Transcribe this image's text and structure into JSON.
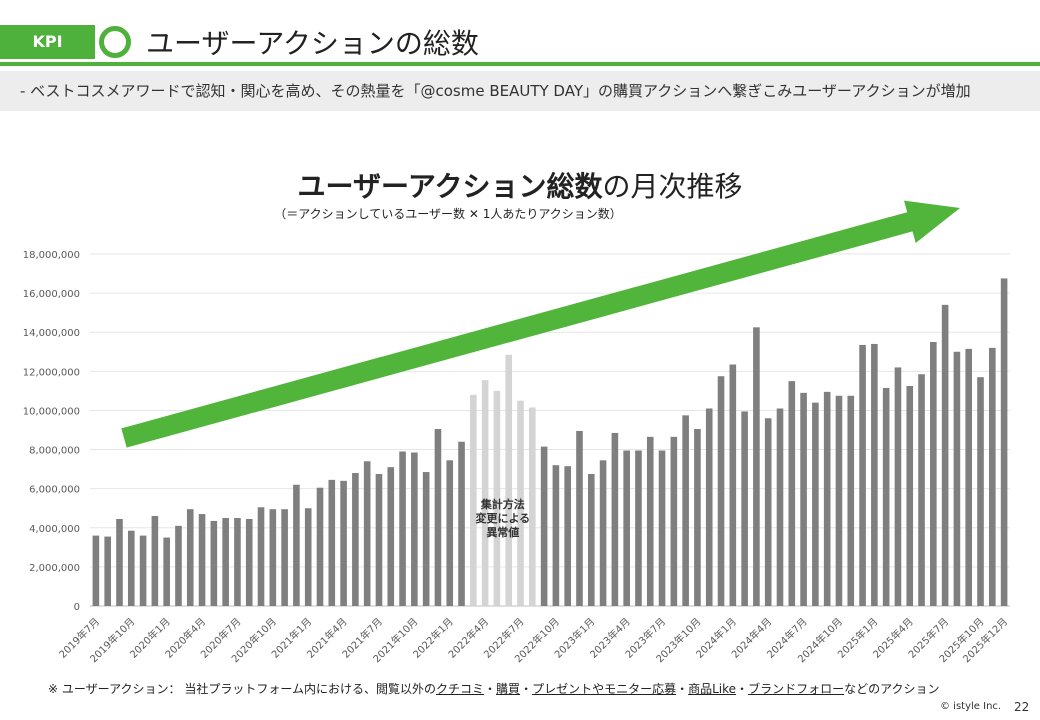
{
  "header": {
    "badge": "KPI",
    "title": "ユーザーアクションの総数",
    "subtitle": "-  ベストコスメアワードで認知・関心を高め、その熱量を「@cosme BEAUTY DAY」の購買アクションへ繋ぎこみユーザーアクションが増加"
  },
  "chart_data": {
    "type": "bar",
    "title_bold": "ユーザーアクション総数",
    "title_rest": "の月次推移",
    "subtitle": "（＝アクションしているユーザー数 ✕ 1人あたりアクション数）",
    "ylim": [
      0,
      18000000
    ],
    "yticks": [
      0,
      2000000,
      4000000,
      6000000,
      8000000,
      10000000,
      12000000,
      14000000,
      16000000,
      18000000
    ],
    "ytick_labels": [
      "0",
      "2,000,000",
      "4,000,000",
      "6,000,000",
      "8,000,000",
      "10,000,000",
      "12,000,000",
      "14,000,000",
      "16,000,000",
      "18,000,000"
    ],
    "start": "2019-07",
    "values": [
      3600000,
      3550000,
      4450000,
      3850000,
      3600000,
      4600000,
      3500000,
      4100000,
      4950000,
      4700000,
      4350000,
      4500000,
      4500000,
      4450000,
      5050000,
      4950000,
      4950000,
      6200000,
      5000000,
      6050000,
      6450000,
      6400000,
      6800000,
      7400000,
      6750000,
      7100000,
      7900000,
      7850000,
      6850000,
      9050000,
      7450000,
      8400000,
      10800000,
      11550000,
      11000000,
      12850000,
      10500000,
      10150000,
      8150000,
      7200000,
      7150000,
      8950000,
      6750000,
      7450000,
      8850000,
      7950000,
      7950000,
      8650000,
      7950000,
      8650000,
      9750000,
      9050000,
      10100000,
      11750000,
      12350000,
      9950000,
      14250000,
      9600000,
      10100000,
      11500000,
      10900000,
      10400000,
      10950000,
      10750000,
      10750000,
      13350000,
      13400000,
      11150000,
      12200000,
      11250000,
      11850000,
      13500000,
      15400000,
      13000000,
      13150000,
      11700000,
      13200000,
      16750000
    ],
    "highlight_indices": [
      32,
      33,
      34,
      35,
      36,
      37
    ],
    "highlight_note": [
      "集計方法",
      "変更による",
      "異常値"
    ],
    "x_tick_labels": [
      "2019年7月",
      "2019年10月",
      "2020年1月",
      "2020年4月",
      "2020年7月",
      "2020年10月",
      "2021年1月",
      "2021年4月",
      "2021年7月",
      "2021年10月",
      "2022年1月",
      "2022年4月",
      "2022年7月",
      "2022年10月",
      "2023年1月",
      "2023年4月",
      "2023年7月",
      "2023年10月",
      "2024年1月",
      "2024年4月",
      "2024年7月",
      "2024年10月",
      "2025年1月",
      "2025年4月",
      "2025年7月",
      "2025年10月",
      "2025年12月"
    ],
    "x_tick_indices": [
      0,
      3,
      6,
      9,
      12,
      15,
      18,
      21,
      24,
      27,
      30,
      33,
      36,
      39,
      42,
      45,
      48,
      51,
      54,
      57,
      60,
      63,
      66,
      69,
      72,
      75,
      77
    ],
    "colors": {
      "bar": "#7f7f7f",
      "highlight": "#d4d4d4",
      "grid": "#e6e6e6",
      "arrow": "#52b53b"
    }
  },
  "footnote": {
    "prefix": "※  ユーザーアクション： 当社プラットフォーム内における、閲覧以外の",
    "l1": "クチコミ",
    "s1": "・",
    "l2": "購買",
    "s2": "・",
    "l3": "プレゼントやモニター応募",
    "s3": "・",
    "l4": "商品Like",
    "s4": "・",
    "l5": "ブランドフォロー",
    "suffix": "などのアクション"
  },
  "copyright": "©  istyle Inc.",
  "page_number": "22"
}
